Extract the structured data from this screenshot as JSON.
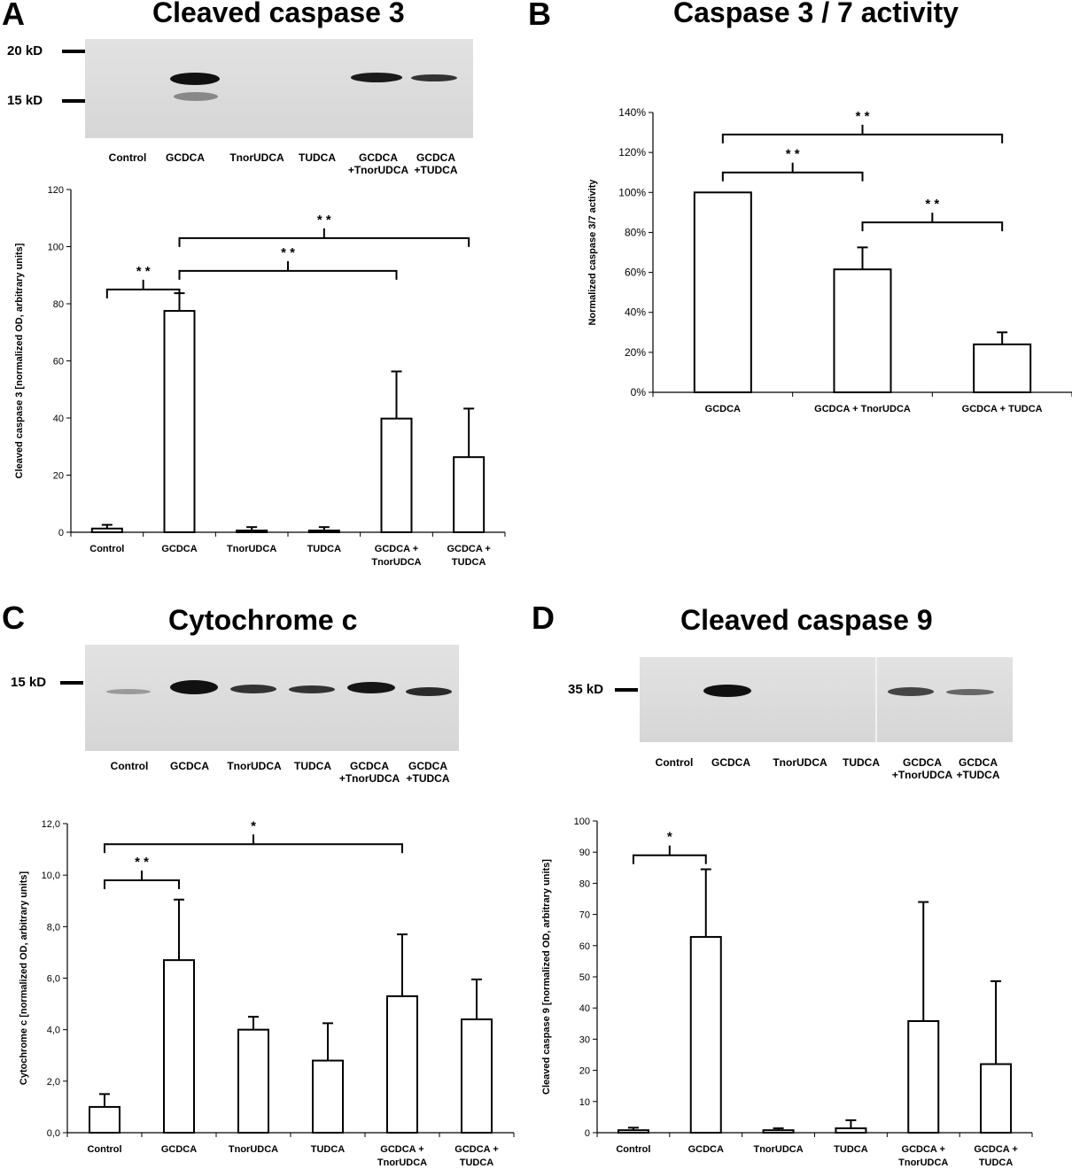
{
  "panels": {
    "a": {
      "letter": "A",
      "title": "Cleaved caspase 3",
      "markers": [
        "20 kD",
        "15 kD"
      ],
      "lanes": [
        "Control",
        "GCDCA",
        "TnorUDCA",
        "TUDCA",
        "GCDCA\n+TnorUDCA",
        "GCDCA\n+TUDCA"
      ]
    },
    "b": {
      "letter": "B",
      "title": "Caspase 3 / 7 activity"
    },
    "c": {
      "letter": "C",
      "title": "Cytochrome c",
      "markers": [
        "15 kD"
      ],
      "lanes": [
        "Control",
        "GCDCA",
        "TnorUDCA",
        "TUDCA",
        "GCDCA\n+TnorUDCA",
        "GCDCA\n+TUDCA"
      ]
    },
    "d": {
      "letter": "D",
      "title": "Cleaved caspase 9",
      "markers": [
        "35 kD"
      ],
      "lanes": [
        "Control",
        "GCDCA",
        "TnorUDCA",
        "TUDCA",
        "GCDCA\n+TnorUDCA",
        "GCDCA\n+TUDCA"
      ]
    }
  },
  "chart_data": [
    {
      "id": "a",
      "type": "bar",
      "categories": [
        "Control",
        "GCDCA",
        "TnorUDCA",
        "TUDCA",
        "GCDCA +\nTnorUDCA",
        "GCDCA +\nTUDCA"
      ],
      "values": [
        1.3,
        77.5,
        0.6,
        0.6,
        39.8,
        26.3
      ],
      "errors": [
        1.3,
        6.2,
        1.2,
        1.2,
        16.5,
        17.0
      ],
      "ylabel": "Cleaved caspase 3 [normalized OD, arbitrary units]",
      "ylim": [
        0,
        120
      ],
      "yticks": [
        "0",
        "20",
        "40",
        "60",
        "80",
        "100",
        "120"
      ],
      "significance": [
        {
          "from": 0,
          "to": 1,
          "label": "* *"
        },
        {
          "from": 1,
          "to": 4,
          "label": "* *"
        },
        {
          "from": 1,
          "to": 5,
          "label": "* *"
        }
      ]
    },
    {
      "id": "b",
      "type": "bar",
      "categories": [
        "GCDCA",
        "GCDCA + TnorUDCA",
        "GCDCA + TUDCA"
      ],
      "values": [
        100,
        61.5,
        24
      ],
      "errors": [
        0,
        11,
        6
      ],
      "ylabel": "Normalized caspase 3/7 activity",
      "ylim": [
        0,
        140
      ],
      "yticks": [
        "0%",
        "20%",
        "40%",
        "60%",
        "80%",
        "100%",
        "120%",
        "140%"
      ],
      "significance": [
        {
          "from": 0,
          "to": 2,
          "label": "* *"
        },
        {
          "from": 0,
          "to": 1,
          "label": "* *"
        },
        {
          "from": 1,
          "to": 2,
          "label": "* *"
        }
      ]
    },
    {
      "id": "c",
      "type": "bar",
      "categories": [
        "Control",
        "GCDCA",
        "TnorUDCA",
        "TUDCA",
        "GCDCA +\nTnorUDCA",
        "GCDCA +\nTUDCA"
      ],
      "values": [
        1.0,
        6.7,
        4.0,
        2.8,
        5.3,
        4.4
      ],
      "errors": [
        0.5,
        2.35,
        0.5,
        1.45,
        2.4,
        1.55
      ],
      "ylabel": "Cytochrome c [normalized OD, arbitrary units]",
      "ylim": [
        0,
        12
      ],
      "yticks": [
        "0,0",
        "2,0",
        "4,0",
        "6,0",
        "8,0",
        "10,0",
        "12,0"
      ],
      "significance": [
        {
          "from": 0,
          "to": 4,
          "label": "*"
        },
        {
          "from": 0,
          "to": 1,
          "label": "* *"
        }
      ]
    },
    {
      "id": "d",
      "type": "bar",
      "categories": [
        "Control",
        "GCDCA",
        "TnorUDCA",
        "TUDCA",
        "GCDCA +\nTnorUDCA",
        "GCDCA +\nTUDCA"
      ],
      "values": [
        0.8,
        62.8,
        0.8,
        1.4,
        35.8,
        22
      ],
      "errors": [
        0.8,
        21.7,
        0.6,
        2.6,
        38.2,
        26.6
      ],
      "ylabel": "Cleaved caspase 9 [normalized OD, arbitrary units]",
      "ylim": [
        0,
        100
      ],
      "yticks": [
        "0",
        "10",
        "20",
        "30",
        "40",
        "50",
        "60",
        "70",
        "80",
        "90",
        "100"
      ],
      "significance": [
        {
          "from": 0,
          "to": 1,
          "label": "*"
        }
      ]
    }
  ]
}
